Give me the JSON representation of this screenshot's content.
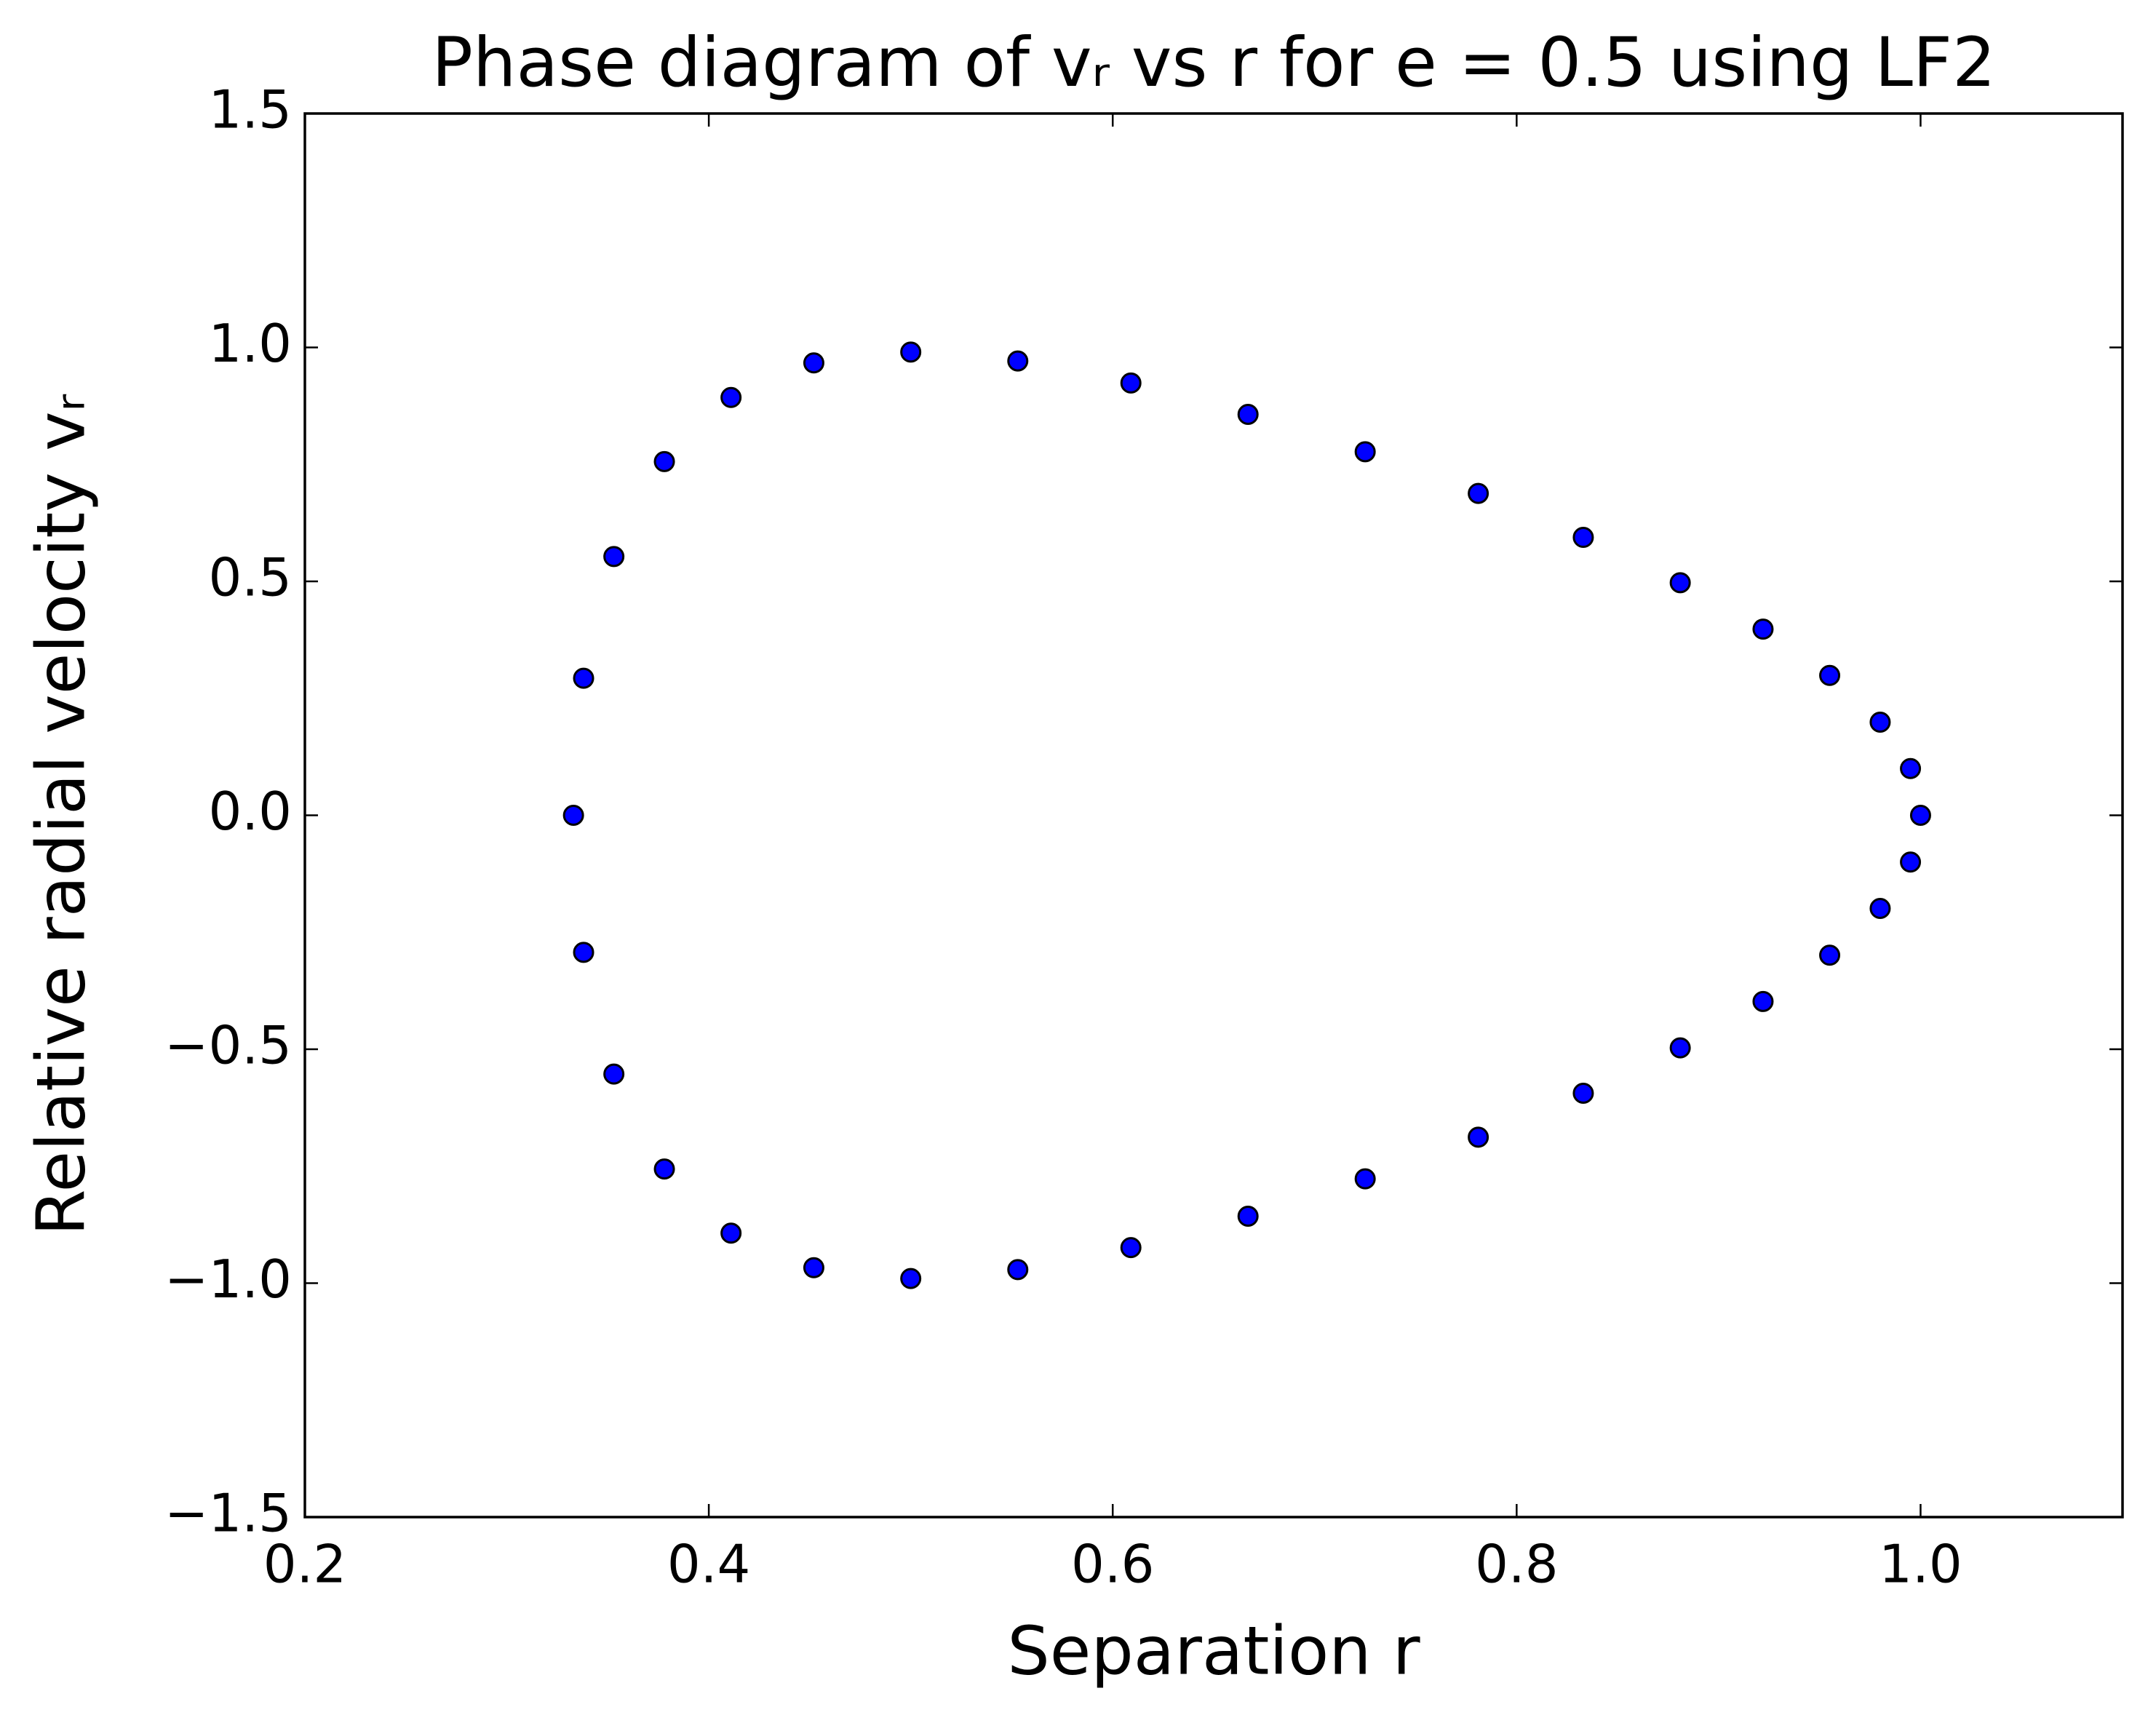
{
  "chart_data": {
    "type": "scatter",
    "title": "Phase diagram of vᵣ vs r for e = 0.5 using LF2",
    "xlabel": "Separation r",
    "ylabel": "Relative radial velocity vᵣ",
    "x": [
      0.333,
      0.338,
      0.353,
      0.378,
      0.411,
      0.452,
      0.5,
      0.553,
      0.609,
      0.667,
      0.725,
      0.781,
      0.833,
      0.881,
      0.922,
      0.955,
      0.98,
      0.995,
      1.0,
      0.995,
      0.98,
      0.955,
      0.922,
      0.881,
      0.833,
      0.781,
      0.725,
      0.667,
      0.609,
      0.553,
      0.5,
      0.452,
      0.411,
      0.378,
      0.353,
      0.338
    ],
    "values": [
      0.0,
      0.293,
      0.553,
      0.756,
      0.893,
      0.967,
      0.99,
      0.971,
      0.924,
      0.857,
      0.777,
      0.688,
      0.594,
      0.497,
      0.398,
      0.299,
      0.199,
      0.1,
      0.0,
      -0.1,
      -0.199,
      -0.299,
      -0.398,
      -0.497,
      -0.594,
      -0.688,
      -0.777,
      -0.857,
      -0.924,
      -0.971,
      -0.99,
      -0.967,
      -0.893,
      -0.756,
      -0.553,
      -0.293
    ],
    "color": "#0000ff",
    "edgecolor": "#000000",
    "xlim": [
      0.2,
      1.1
    ],
    "xticks": [
      0.2,
      0.4,
      0.6,
      0.8,
      {
        "value": 1,
        "label": "1.0"
      }
    ],
    "ylim": [
      -1.5,
      1.5
    ],
    "yticks": [
      {
        "value": -1.5,
        "label": "−1.5"
      },
      {
        "value": -1,
        "label": "−1.0"
      },
      {
        "value": -0.5,
        "label": "−0.5"
      },
      {
        "value": 0,
        "label": "0.0"
      },
      0.5,
      {
        "value": 1,
        "label": "1.0"
      },
      1.5
    ],
    "grid": false
  }
}
